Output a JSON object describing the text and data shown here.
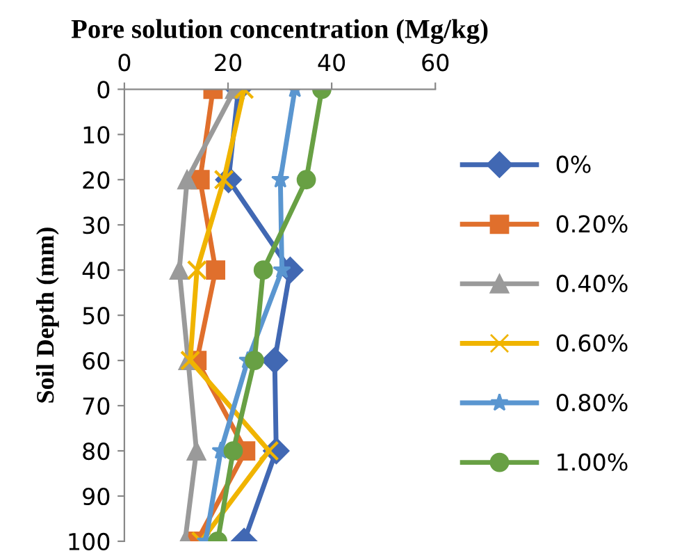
{
  "chart_data": {
    "type": "line",
    "orientation": "horizontal",
    "xlabel": "Pore solution concentration (Mg/kg)",
    "ylabel": "Soil Depth (mm)",
    "x": [
      0,
      20,
      40,
      60,
      80,
      100
    ],
    "xlim": [
      0,
      60
    ],
    "xticks": [
      0,
      20,
      40,
      60
    ],
    "ylim": [
      100,
      0
    ],
    "yticks": [
      0,
      10,
      20,
      30,
      40,
      50,
      60,
      70,
      80,
      90,
      100
    ],
    "grid": false,
    "legend": "right",
    "line_style": "solid",
    "series": [
      {
        "name": "0%",
        "color": "#4168b3",
        "marker": "diamond",
        "values": [
          22,
          20.1,
          32,
          29,
          29.3,
          23.1
        ]
      },
      {
        "name": "0.20%",
        "color": "#e06f2c",
        "marker": "square",
        "values": [
          17.1,
          14.6,
          17.6,
          14,
          23.4,
          14
        ]
      },
      {
        "name": "0.40%",
        "color": "#9a9a9a",
        "marker": "triangle",
        "values": [
          21.3,
          12.1,
          10.6,
          12.3,
          13.9,
          11.7
        ]
      },
      {
        "name": "0.60%",
        "color": "#f0b400",
        "marker": "cross",
        "values": [
          23.1,
          19.2,
          14,
          12.7,
          27.9,
          14.8
        ]
      },
      {
        "name": "0.80%",
        "color": "#5a96d0",
        "marker": "star",
        "values": [
          32.9,
          30.1,
          30.4,
          23.8,
          18.6,
          15.7
        ]
      },
      {
        "name": "1.00%",
        "color": "#68a044",
        "marker": "circle",
        "values": [
          38.1,
          35.1,
          26.8,
          25.1,
          21,
          18
        ]
      }
    ]
  }
}
